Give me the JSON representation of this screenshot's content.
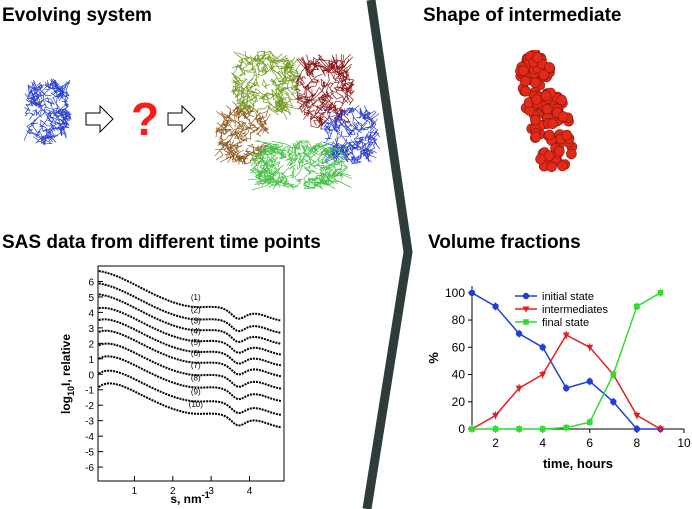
{
  "headings": {
    "evolving": "Evolving system",
    "shape": "Shape of intermediate",
    "sas": "SAS data from different time points",
    "volume": "Volume fractions"
  },
  "question_mark": "?",
  "colors": {
    "divider": "#2f3c3c",
    "question": "#ff1a1a",
    "initial": "#1f3fd8",
    "intermediates": "#e02020",
    "final": "#2fdc2f",
    "protein_blue": "#2a3fd0",
    "protein_green": "#45c045",
    "protein_olive": "#6f9a1e",
    "protein_darkred": "#8a1a1a",
    "protein_brown": "#8b5a1e",
    "bead_red": "#e02a1a"
  },
  "icons": [
    "arrow-right-icon",
    "protein-monomer-icon",
    "protein-assembly-icon",
    "bead-model-icon"
  ],
  "chart_data": [
    {
      "type": "line",
      "xlabel": "s, nm",
      "xlabel_superscript": "-1",
      "ylabel": "log",
      "ylabel_sub": "10",
      "ylabel_rest": "I, relative",
      "xlim": [
        0.05,
        4.9
      ],
      "ylim": [
        -6.9,
        7.0
      ],
      "xticks": [
        1,
        2,
        3,
        4
      ],
      "yticks": [
        6,
        5,
        4,
        3,
        2,
        1,
        0,
        -1,
        -2,
        -3,
        -4,
        -5,
        -6
      ],
      "curve_labels": [
        "(1)",
        "(2)",
        "(3)",
        "(4)",
        "(5)",
        "(6)",
        "(7)",
        "(8)",
        "(9)",
        "(10)"
      ],
      "curve_offsets": [
        6.7,
        5.9,
        5.2,
        4.5,
        3.8,
        3.1,
        2.3,
        1.5,
        0.6,
        -0.2
      ]
    },
    {
      "type": "line",
      "xlabel": "time, hours",
      "ylabel": "%",
      "xlim": [
        1,
        10
      ],
      "ylim": [
        0,
        105
      ],
      "xticks": [
        2,
        4,
        6,
        8,
        10
      ],
      "yticks": [
        0,
        20,
        40,
        60,
        80,
        100
      ],
      "legend_position": "top-center",
      "x": [
        1,
        2,
        3,
        4,
        5,
        6,
        7,
        8,
        9
      ],
      "series": [
        {
          "name": "initial state",
          "values": [
            100,
            90,
            70,
            60,
            30,
            35,
            20,
            0,
            0
          ],
          "marker": "circle"
        },
        {
          "name": "intermediates",
          "values": [
            0,
            10,
            30,
            40,
            69,
            60,
            40,
            10,
            0
          ],
          "marker": "triangle-down"
        },
        {
          "name": "final state",
          "values": [
            0,
            0,
            0,
            0,
            1,
            5,
            40,
            90,
            100
          ],
          "marker": "square"
        }
      ]
    }
  ]
}
